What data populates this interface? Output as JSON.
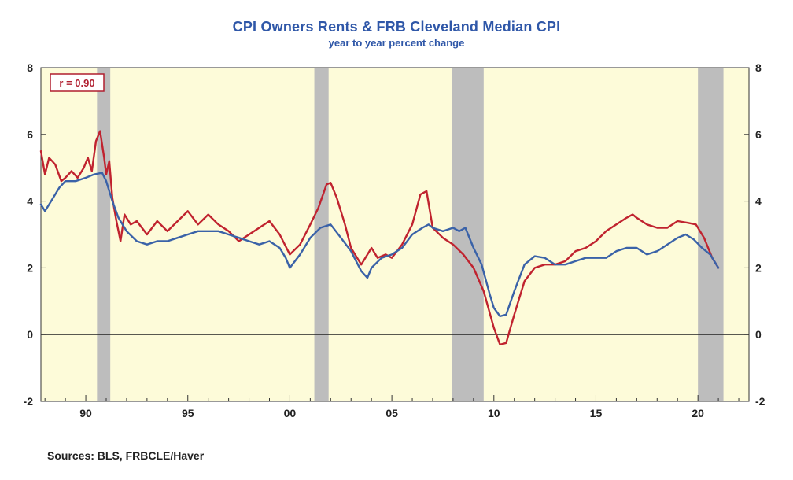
{
  "header": {
    "title": "CPI Owners Rents & FRB Cleveland Median CPI",
    "subtitle": "year to year percent change"
  },
  "footer": {
    "source": "Sources:  BLS, FRBCLE/Haver"
  },
  "colors": {
    "background": "#fdfbd9",
    "recession": "#bdbdbd",
    "owners_rent": "#c0232f",
    "median_cpi": "#3a62a8",
    "annotation_border": "#b01e2e"
  },
  "chart_data": {
    "type": "line",
    "title": "CPI Owners Rents & FRB Cleveland Median CPI",
    "subtitle": "year to year percent change",
    "annotation": "r = 0.90",
    "xlim": [
      1987.8,
      2022.5
    ],
    "ylim": [
      -2,
      8
    ],
    "y_ticks": [
      -2,
      0,
      2,
      4,
      6,
      8
    ],
    "y_tick_labels": [
      "-2",
      "0",
      "2",
      "4",
      "6",
      "8"
    ],
    "x_ticks": [
      1990,
      1995,
      2000,
      2005,
      2010,
      2015,
      2020
    ],
    "x_tick_labels": [
      "90",
      "95",
      "00",
      "05",
      "10",
      "15",
      "20"
    ],
    "zero_line": true,
    "grid": false,
    "y_axis_both_sides": true,
    "recessions": [
      [
        1990.55,
        1991.2
      ],
      [
        2001.2,
        2001.9
      ],
      [
        2007.95,
        2009.5
      ],
      [
        2020.0,
        2021.25
      ]
    ],
    "series": [
      {
        "key": "owners_rent",
        "x": [
          1987.8,
          1988.0,
          1988.2,
          1988.5,
          1988.8,
          1989.0,
          1989.3,
          1989.6,
          1989.9,
          1990.1,
          1990.3,
          1990.5,
          1990.7,
          1990.9,
          1991.0,
          1991.15,
          1991.3,
          1991.5,
          1991.7,
          1991.9,
          1992.2,
          1992.5,
          1993.0,
          1993.5,
          1994.0,
          1994.5,
          1995.0,
          1995.5,
          1996.0,
          1996.5,
          1997.0,
          1997.5,
          1998.0,
          1998.5,
          1999.0,
          1999.5,
          2000.0,
          2000.5,
          2001.0,
          2001.4,
          2001.8,
          2002.0,
          2002.3,
          2002.7,
          2003.0,
          2003.5,
          2004.0,
          2004.3,
          2004.7,
          2005.0,
          2005.5,
          2006.0,
          2006.4,
          2006.7,
          2007.0,
          2007.5,
          2008.0,
          2008.5,
          2009.0,
          2009.5,
          2010.0,
          2010.3,
          2010.6,
          2011.0,
          2011.5,
          2012.0,
          2012.5,
          2013.0,
          2013.5,
          2014.0,
          2014.5,
          2015.0,
          2015.5,
          2016.0,
          2016.5,
          2016.8,
          2017.0,
          2017.5,
          2018.0,
          2018.5,
          2019.0,
          2019.5,
          2019.9,
          2020.3,
          2020.7,
          2021.0
        ],
        "y": [
          5.5,
          4.8,
          5.3,
          5.1,
          4.6,
          4.7,
          4.9,
          4.7,
          5.0,
          5.3,
          4.9,
          5.8,
          6.1,
          5.3,
          4.8,
          5.2,
          4.1,
          3.4,
          2.8,
          3.6,
          3.3,
          3.4,
          3.0,
          3.4,
          3.1,
          3.4,
          3.7,
          3.3,
          3.6,
          3.3,
          3.1,
          2.8,
          3.0,
          3.2,
          3.4,
          3.0,
          2.4,
          2.7,
          3.3,
          3.8,
          4.5,
          4.55,
          4.1,
          3.3,
          2.6,
          2.1,
          2.6,
          2.3,
          2.4,
          2.3,
          2.7,
          3.3,
          4.2,
          4.3,
          3.2,
          2.9,
          2.7,
          2.4,
          2.0,
          1.3,
          0.2,
          -0.3,
          -0.25,
          0.6,
          1.6,
          2.0,
          2.1,
          2.1,
          2.2,
          2.5,
          2.6,
          2.8,
          3.1,
          3.3,
          3.5,
          3.6,
          3.5,
          3.3,
          3.2,
          3.2,
          3.4,
          3.35,
          3.3,
          2.9,
          2.3,
          2.0
        ],
        "color": "#c0232f"
      },
      {
        "key": "median_cpi",
        "x": [
          1987.8,
          1988.0,
          1988.3,
          1988.7,
          1989.0,
          1989.5,
          1990.0,
          1990.4,
          1990.8,
          1991.0,
          1991.3,
          1991.6,
          1992.0,
          1992.5,
          1993.0,
          1993.5,
          1994.0,
          1994.5,
          1995.0,
          1995.5,
          1996.0,
          1996.5,
          1997.0,
          1997.5,
          1998.0,
          1998.5,
          1999.0,
          1999.5,
          1999.8,
          2000.0,
          2000.5,
          2001.0,
          2001.5,
          2002.0,
          2002.5,
          2003.0,
          2003.5,
          2003.8,
          2004.0,
          2004.5,
          2005.0,
          2005.5,
          2006.0,
          2006.5,
          2006.8,
          2007.0,
          2007.5,
          2008.0,
          2008.3,
          2008.6,
          2009.0,
          2009.4,
          2009.8,
          2010.0,
          2010.3,
          2010.6,
          2011.0,
          2011.5,
          2012.0,
          2012.5,
          2013.0,
          2013.5,
          2014.0,
          2014.5,
          2015.0,
          2015.5,
          2016.0,
          2016.5,
          2017.0,
          2017.5,
          2018.0,
          2018.5,
          2019.0,
          2019.4,
          2019.8,
          2020.2,
          2020.6,
          2021.0
        ],
        "y": [
          3.9,
          3.7,
          4.0,
          4.4,
          4.6,
          4.6,
          4.7,
          4.8,
          4.85,
          4.6,
          4.0,
          3.5,
          3.1,
          2.8,
          2.7,
          2.8,
          2.8,
          2.9,
          3.0,
          3.1,
          3.1,
          3.1,
          3.0,
          2.9,
          2.8,
          2.7,
          2.8,
          2.6,
          2.3,
          2.0,
          2.4,
          2.9,
          3.2,
          3.3,
          2.9,
          2.5,
          1.9,
          1.7,
          2.0,
          2.3,
          2.4,
          2.6,
          3.0,
          3.2,
          3.3,
          3.2,
          3.1,
          3.2,
          3.1,
          3.2,
          2.6,
          2.1,
          1.2,
          0.8,
          0.55,
          0.6,
          1.3,
          2.1,
          2.35,
          2.3,
          2.1,
          2.1,
          2.2,
          2.3,
          2.3,
          2.3,
          2.5,
          2.6,
          2.6,
          2.4,
          2.5,
          2.7,
          2.9,
          3.0,
          2.85,
          2.6,
          2.4,
          2.0
        ],
        "color": "#3a62a8"
      }
    ]
  }
}
